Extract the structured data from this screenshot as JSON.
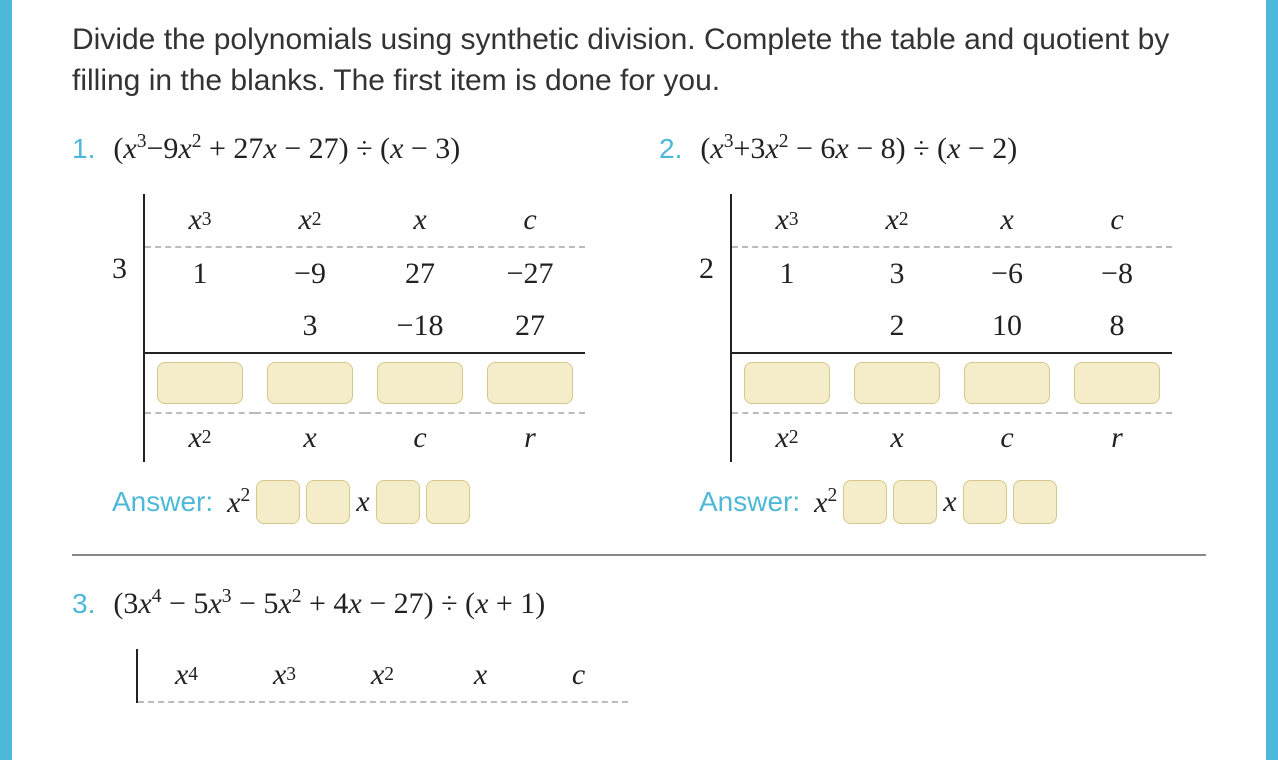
{
  "instructions": "Divide the polynomials using synthetic division. Complete the table and quotient by filling in the blanks. The first item is done for you.",
  "answer_label": "Answer:",
  "colors": {
    "border": "#4db8d8",
    "accent": "#4db8d8",
    "blank_fill": "#f5edc9",
    "blank_border": "#d4c88a",
    "text": "#222222",
    "dash": "#bbbbbb"
  },
  "problems": [
    {
      "num": "1.",
      "expr_html": "(<span class='mi'>x</span><span class='sup'>3</span>−9<span class='mi'>x</span><span class='sup'>2</span> + 27<span class='mi'>x</span> − 27) ÷ (<span class='mi'>x</span> − 3)",
      "divisor": "3",
      "headers": [
        "x³",
        "x²",
        "x",
        "c"
      ],
      "row1": [
        "1",
        "−9",
        "27",
        "−27"
      ],
      "row2": [
        "",
        "3",
        "−18",
        "27"
      ],
      "labels": [
        "x²",
        "x",
        "c",
        "r"
      ],
      "answer_prefix": "x²",
      "answer_mid": "x"
    },
    {
      "num": "2.",
      "expr_html": "(<span class='mi'>x</span><span class='sup'>3</span>+3<span class='mi'>x</span><span class='sup'>2</span> − 6<span class='mi'>x</span> − 8) ÷ (<span class='mi'>x</span> − 2)",
      "divisor": "2",
      "headers": [
        "x³",
        "x²",
        "x",
        "c"
      ],
      "row1": [
        "1",
        "3",
        "−6",
        "−8"
      ],
      "row2": [
        "",
        "2",
        "10",
        "8"
      ],
      "labels": [
        "x²",
        "x",
        "c",
        "r"
      ],
      "answer_prefix": "x²",
      "answer_mid": "x"
    }
  ],
  "problem3": {
    "num": "3.",
    "expr_html": "(3<span class='mi'>x</span><span class='sup'>4</span> − 5<span class='mi'>x</span><span class='sup'>3</span> − 5<span class='mi'>x</span><span class='sup'>2</span> + 4<span class='mi'>x</span> − 27) ÷ (<span class='mi'>x</span> + 1)",
    "headers": [
      "x⁴",
      "x³",
      "x²",
      "x",
      "c"
    ]
  }
}
